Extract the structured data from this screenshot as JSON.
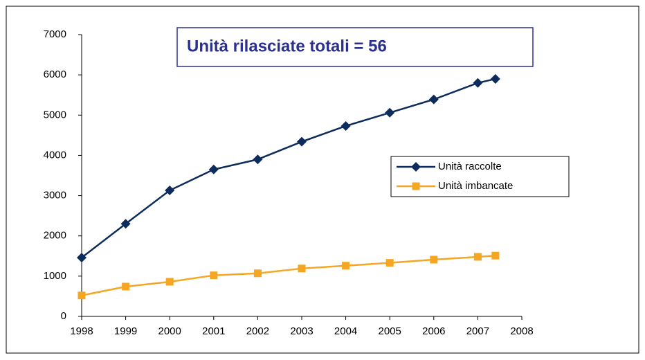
{
  "chart_data": {
    "type": "line",
    "title": "Unità rilasciate totali = 56",
    "x": [
      1998,
      1999,
      2000,
      2001,
      2002,
      2003,
      2004,
      2005,
      2006,
      2007,
      2007.4
    ],
    "series": [
      {
        "name": "Unità raccolte",
        "color": "#0d2c5c",
        "marker": "diamond",
        "values": [
          1460,
          2300,
          3130,
          3650,
          3900,
          4340,
          4730,
          5060,
          5390,
          5800,
          5900
        ]
      },
      {
        "name": "Unità imbancate",
        "color": "#f5a623",
        "marker": "square",
        "values": [
          520,
          740,
          860,
          1020,
          1070,
          1190,
          1260,
          1330,
          1410,
          1480,
          1510
        ]
      }
    ],
    "xlim": [
      1998,
      2008
    ],
    "xticks": [
      1998,
      1999,
      2000,
      2001,
      2002,
      2003,
      2004,
      2005,
      2006,
      2007,
      2008
    ],
    "ylim": [
      0,
      7000
    ],
    "yticks": [
      0,
      1000,
      2000,
      3000,
      4000,
      5000,
      6000,
      7000
    ],
    "grid": false,
    "legend": "right"
  }
}
